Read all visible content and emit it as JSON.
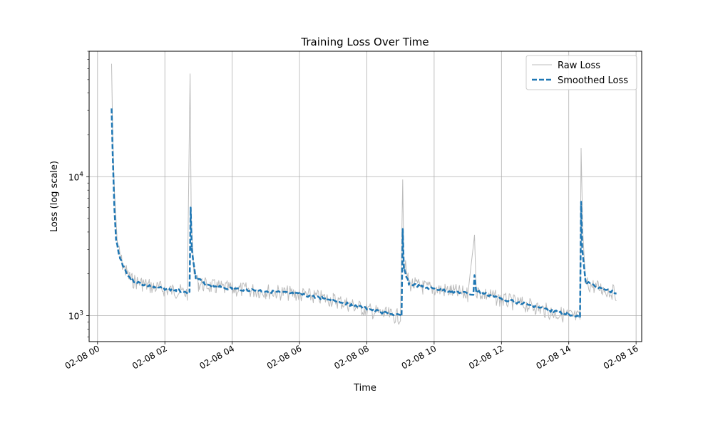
{
  "chart_data": {
    "type": "line",
    "title": "Training Loss Over Time",
    "xlabel": "Time",
    "ylabel": "Loss (log scale)",
    "y_scale": "log",
    "ylim": [
      650,
      80000
    ],
    "xlim": [
      "02-08 00:00",
      "02-08 16:10"
    ],
    "x_ticks": [
      "02-08 00",
      "02-08 02",
      "02-08 04",
      "02-08 06",
      "02-08 08",
      "02-08 10",
      "02-08 12",
      "02-08 14",
      "02-08 16"
    ],
    "y_ticks": [
      {
        "value": 1000,
        "base": "10",
        "exp": "3"
      },
      {
        "value": 10000,
        "base": "10",
        "exp": "4"
      }
    ],
    "grid": true,
    "legend": "top-right",
    "series": [
      {
        "name": "Raw Loss",
        "style": "solid-thin",
        "color": "#bcbcbc",
        "points": [
          [
            "02-08 00:25",
            65000
          ],
          [
            "02-08 00:27",
            20000
          ],
          [
            "02-08 00:30",
            8000
          ],
          [
            "02-08 00:35",
            3500
          ],
          [
            "02-08 00:40",
            2600
          ],
          [
            "02-08 00:50",
            2100
          ],
          [
            "02-08 01:00",
            1800
          ],
          [
            "02-08 01:20",
            1700
          ],
          [
            "02-08 01:40",
            1600
          ],
          [
            "02-08 02:00",
            1550
          ],
          [
            "02-08 02:20",
            1500
          ],
          [
            "02-08 02:40",
            1450
          ],
          [
            "02-08 02:45",
            55000
          ],
          [
            "02-08 02:47",
            5000
          ],
          [
            "02-08 02:52",
            2000
          ],
          [
            "02-08 03:00",
            1700
          ],
          [
            "02-08 03:30",
            1600
          ],
          [
            "02-08 04:00",
            1550
          ],
          [
            "02-08 05:00",
            1500
          ],
          [
            "02-08 06:00",
            1420
          ],
          [
            "02-08 07:00",
            1300
          ],
          [
            "02-08 07:30",
            1200
          ],
          [
            "02-08 08:00",
            1100
          ],
          [
            "02-08 08:30",
            1020
          ],
          [
            "02-08 09:00",
            980
          ],
          [
            "02-08 09:04",
            9500
          ],
          [
            "02-08 09:06",
            2500
          ],
          [
            "02-08 09:15",
            1700
          ],
          [
            "02-08 09:40",
            1600
          ],
          [
            "02-08 10:30",
            1500
          ],
          [
            "02-08 11:00",
            1420
          ],
          [
            "02-08 11:12",
            3800
          ],
          [
            "02-08 11:15",
            1500
          ],
          [
            "02-08 12:00",
            1300
          ],
          [
            "02-08 13:00",
            1150
          ],
          [
            "02-08 13:30",
            1050
          ],
          [
            "02-08 14:00",
            1000
          ],
          [
            "02-08 14:20",
            960
          ],
          [
            "02-08 14:22",
            16000
          ],
          [
            "02-08 14:25",
            4000
          ],
          [
            "02-08 14:30",
            1700
          ],
          [
            "02-08 15:00",
            1550
          ],
          [
            "02-08 15:25",
            1450
          ]
        ]
      },
      {
        "name": "Smoothed Loss",
        "style": "dashed",
        "color": "#1f77b4",
        "points": [
          [
            "02-08 00:25",
            31000
          ],
          [
            "02-08 00:27",
            15000
          ],
          [
            "02-08 00:30",
            6000
          ],
          [
            "02-08 00:33",
            3500
          ],
          [
            "02-08 00:40",
            2600
          ],
          [
            "02-08 00:50",
            2100
          ],
          [
            "02-08 01:00",
            1800
          ],
          [
            "02-08 01:20",
            1680
          ],
          [
            "02-08 01:40",
            1600
          ],
          [
            "02-08 02:00",
            1560
          ],
          [
            "02-08 02:20",
            1520
          ],
          [
            "02-08 02:44",
            1480
          ],
          [
            "02-08 02:46",
            6000
          ],
          [
            "02-08 02:48",
            3000
          ],
          [
            "02-08 02:55",
            1900
          ],
          [
            "02-08 03:10",
            1700
          ],
          [
            "02-08 03:40",
            1600
          ],
          [
            "02-08 04:00",
            1560
          ],
          [
            "02-08 05:00",
            1500
          ],
          [
            "02-08 06:00",
            1420
          ],
          [
            "02-08 07:00",
            1300
          ],
          [
            "02-08 07:30",
            1200
          ],
          [
            "02-08 08:00",
            1120
          ],
          [
            "02-08 08:30",
            1050
          ],
          [
            "02-08 09:02",
            990
          ],
          [
            "02-08 09:04",
            4200
          ],
          [
            "02-08 09:06",
            2200
          ],
          [
            "02-08 09:15",
            1700
          ],
          [
            "02-08 09:40",
            1600
          ],
          [
            "02-08 10:30",
            1500
          ],
          [
            "02-08 11:10",
            1420
          ],
          [
            "02-08 11:12",
            1950
          ],
          [
            "02-08 11:15",
            1500
          ],
          [
            "02-08 12:00",
            1320
          ],
          [
            "02-08 13:00",
            1170
          ],
          [
            "02-08 13:30",
            1080
          ],
          [
            "02-08 14:00",
            1030
          ],
          [
            "02-08 14:20",
            980
          ],
          [
            "02-08 14:22",
            6600
          ],
          [
            "02-08 14:24",
            3000
          ],
          [
            "02-08 14:30",
            1750
          ],
          [
            "02-08 15:00",
            1560
          ],
          [
            "02-08 15:25",
            1450
          ]
        ]
      }
    ]
  }
}
